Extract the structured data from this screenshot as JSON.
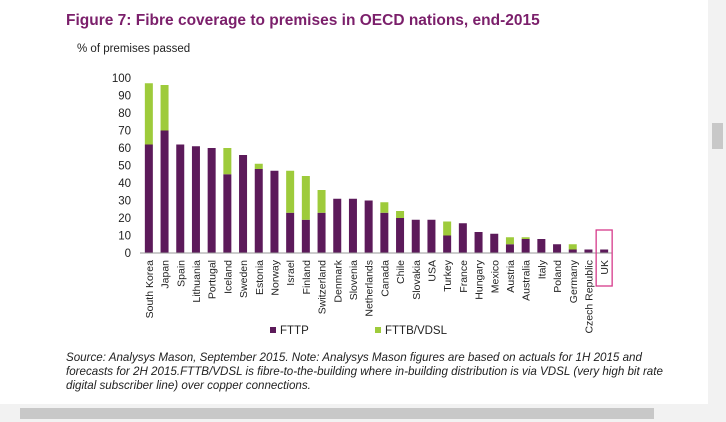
{
  "figure_title": "Figure 7: Fibre coverage to premises in OECD nations, end-2015",
  "source_note": "Source: Analysys Mason, September 2015. Note: Analysys Mason figures are based on actuals for 1H 2015 and forecasts for 2H 2015.FTTB/VDSL is fibre-to-the-building where in-building distribution is via VDSL (very high bit rate digital subscriber line) over copper connections.",
  "colors": {
    "title": "#7b1f6b",
    "fttp": "#5c1a5a",
    "fttb": "#9ecb3b",
    "highlight": "#d63a8a"
  },
  "chart_data": {
    "type": "bar",
    "stacked": true,
    "title": "Figure 7: Fibre coverage to premises in OECD nations, end-2015",
    "ylabel": "% of premises passed",
    "xlabel": "",
    "ylim": [
      0,
      100
    ],
    "yticks": [
      0,
      10,
      20,
      30,
      40,
      50,
      60,
      70,
      80,
      90,
      100
    ],
    "grid": false,
    "legend_position": "bottom",
    "highlighted_category": "UK",
    "categories": [
      "South Korea",
      "Japan",
      "Spain",
      "Lithuania",
      "Portugal",
      "Iceland",
      "Sweden",
      "Estonia",
      "Norway",
      "Israel",
      "Finland",
      "Switzerland",
      "Denmark",
      "Slovenia",
      "Netherlands",
      "Canada",
      "Chile",
      "Slovakia",
      "USA",
      "Turkey",
      "France",
      "Hungary",
      "Mexico",
      "Austria",
      "Australia",
      "Italy",
      "Poland",
      "Germany",
      "Czech Republic",
      "UK"
    ],
    "series": [
      {
        "name": "FTTP",
        "values": [
          62,
          70,
          62,
          61,
          60,
          45,
          56,
          48,
          47,
          23,
          19,
          23,
          31,
          31,
          30,
          23,
          20,
          19,
          19,
          10,
          17,
          12,
          11,
          5,
          8,
          8,
          5,
          2,
          2,
          2
        ]
      },
      {
        "name": "FTTB/VDSL",
        "values": [
          35,
          26,
          0,
          0,
          0,
          15,
          0,
          3,
          0,
          24,
          25,
          13,
          0,
          0,
          0,
          6,
          4,
          0,
          0,
          8,
          0,
          0,
          0,
          4,
          1,
          0,
          0,
          3,
          0,
          0
        ]
      }
    ]
  }
}
